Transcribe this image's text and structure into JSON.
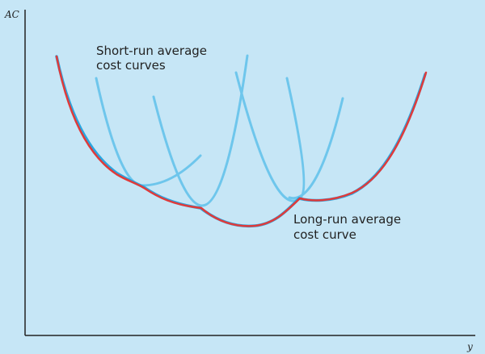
{
  "axes": {
    "y_label": "AC",
    "x_label": "y"
  },
  "annotations": {
    "short_run": [
      "Short-run average",
      "cost curves"
    ],
    "long_run": [
      "Long-run average",
      "cost curve"
    ]
  },
  "colors": {
    "background": "#c6e6f6",
    "short_run_curve": "#6ec6ec",
    "long_run_envelope": "#e03a3a",
    "long_run_underlay": "#2aa6e0",
    "axis": "#222222"
  }
}
